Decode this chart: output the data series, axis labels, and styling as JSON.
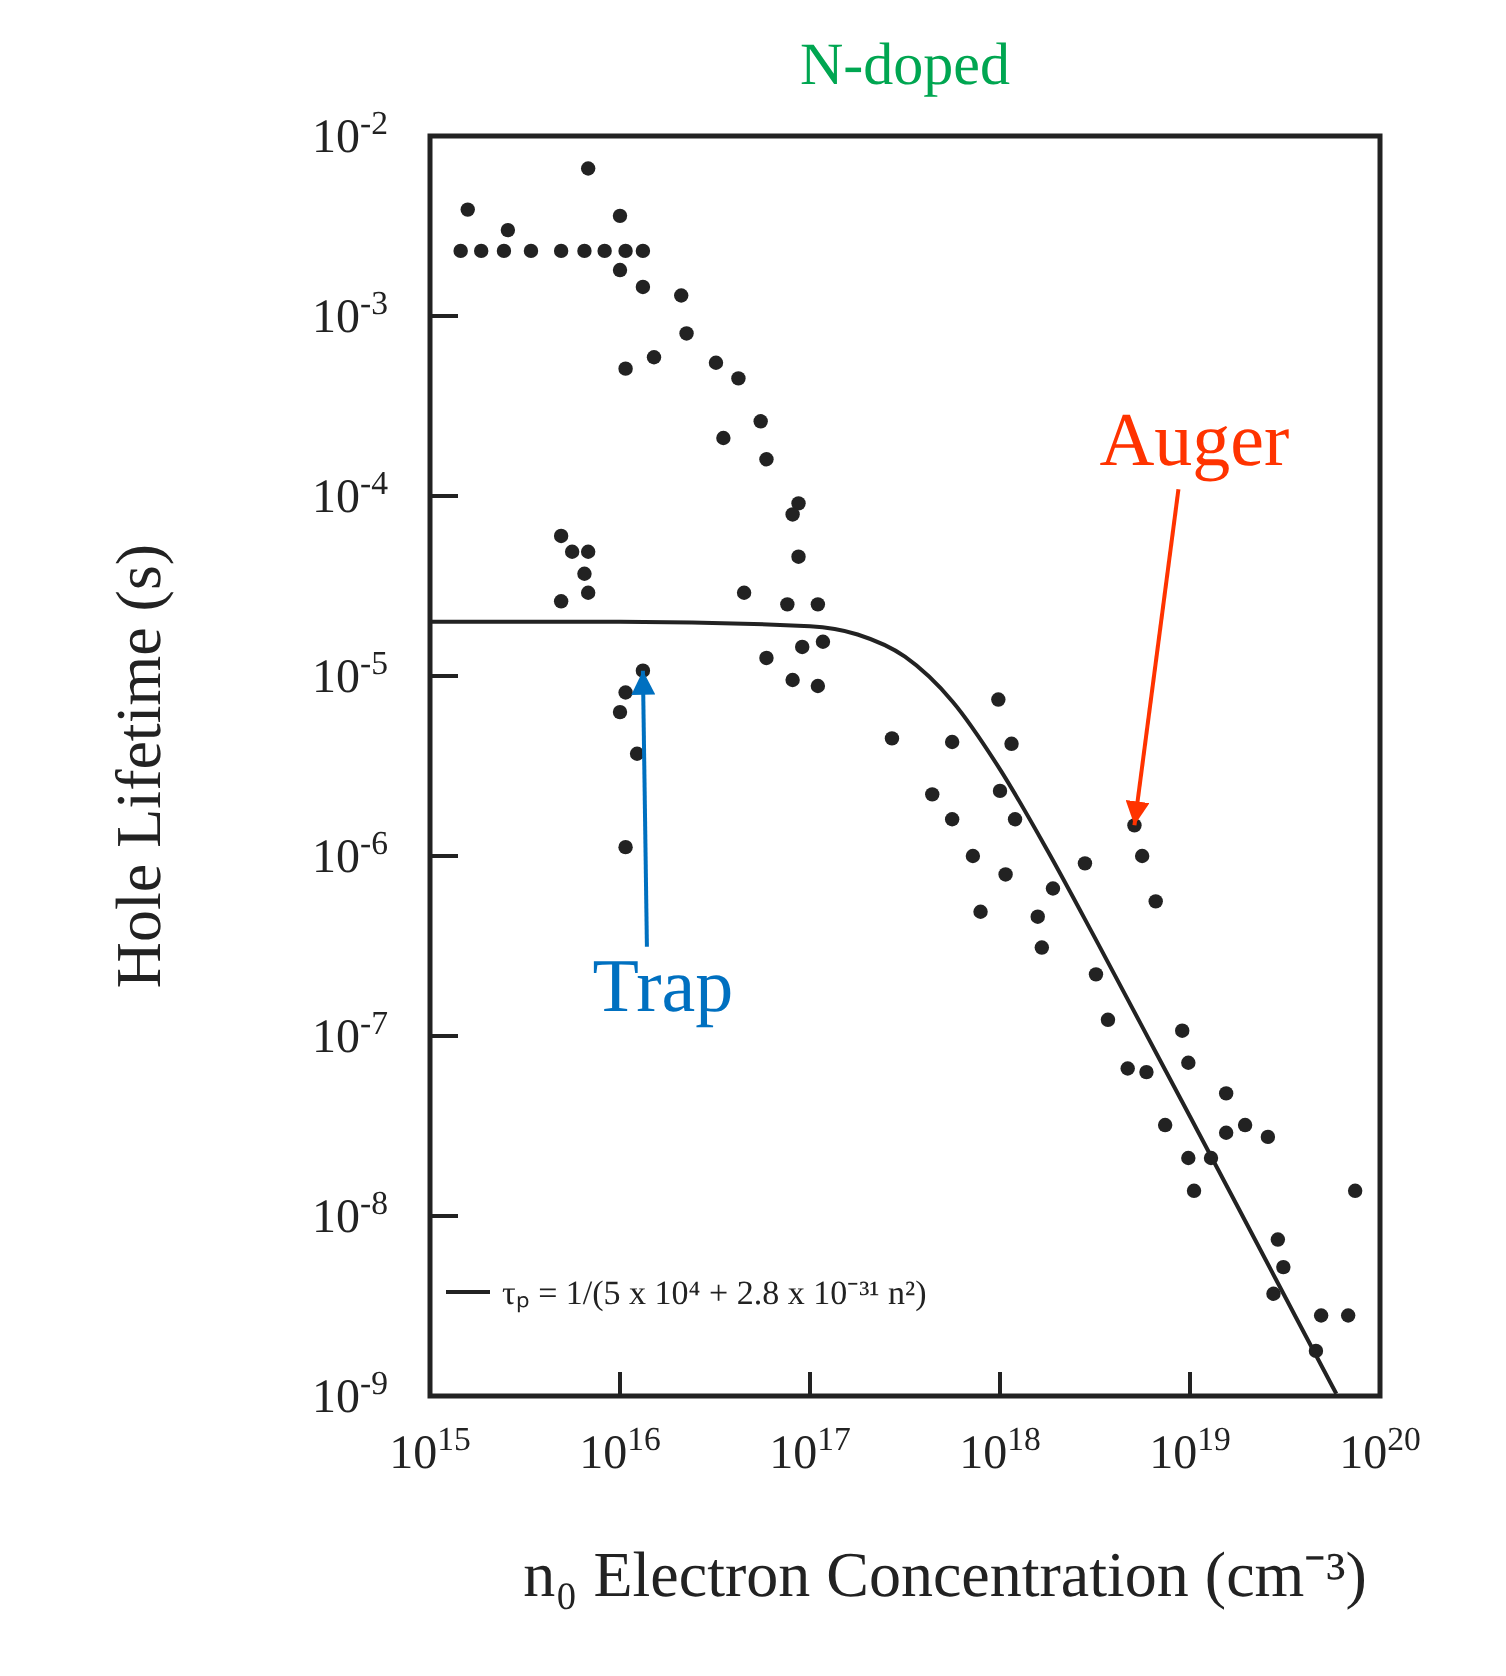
{
  "chart_data": {
    "type": "scatter",
    "title": "N-doped",
    "xlabel": "n₀ Electron Concentration (cm⁻³)",
    "ylabel": "Hole Lifetime (s)",
    "log": "xy",
    "grid": false,
    "legend": "bottom left",
    "xlim": [
      1000000000000000.0,
      1e+20
    ],
    "ylim": [
      1e-09,
      0.01
    ],
    "xticks": [
      {
        "value": 1000000000000000.0,
        "label": "10$^{15}$"
      },
      {
        "value": 1e+16,
        "label": "10$^{16}$"
      },
      {
        "value": 1e+17,
        "label": "10$^{17}$"
      },
      {
        "value": 1e+18,
        "label": "10$^{18}$"
      },
      {
        "value": 1e+19,
        "label": "10$^{19}$"
      },
      {
        "value": 1e+20,
        "label": "10$^{20}$"
      }
    ],
    "yticks": [
      {
        "value": 1e-09,
        "label": "10$^{-9}$"
      },
      {
        "value": 1e-08,
        "label": "10$^{-8}$"
      },
      {
        "value": 1e-07,
        "label": "10$^{-7}$"
      },
      {
        "value": 1e-06,
        "label": "10$^{-6}$"
      },
      {
        "value": 1e-05,
        "label": "10$^{-5}$"
      },
      {
        "value": 0.0001,
        "label": "10$^{-4}$"
      },
      {
        "value": 0.001,
        "label": "10$^{-3}$"
      },
      {
        "value": 0.01,
        "label": "10$^{-2}$"
      }
    ],
    "series": [
      {
        "type": "scatter",
        "marker": "circle",
        "color": "#222222",
        "x": [
          1450000000000000.0,
          1860000000000000.0,
          2450000000000000.0,
          3400000000000000.0,
          4900000000000000.0,
          6500000000000000.0,
          8300000000000000.0,
          1.07e+16,
          1.32e+16,
          1580000000000000.0,
          2570000000000000.0,
          6800000000000000.0,
          1e+16,
          1e+16,
          1.32e+16,
          2.1e+16,
          2.24e+16,
          1.07e+16,
          1.51e+16,
          3.2e+16,
          4.2e+16,
          3.5e+16,
          5.5e+16,
          5.9e+16,
          8.7e+16,
          8.1e+16,
          8.7e+16,
          4.5e+16,
          7.6e+16,
          1.1e+17,
          9.1e+16,
          5.9e+16,
          8.1e+16,
          1.1e+17,
          1.17e+17,
          4900000000000000.0,
          5600000000000000.0,
          6800000000000000.0,
          6500000000000000.0,
          4900000000000000.0,
          6800000000000000.0,
          1.32e+16,
          1.07e+16,
          1e+16,
          1.23e+16,
          1.07e+16,
          2.7e+17,
          5.6e+17,
          9.8e+17,
          1.15e+18,
          4.4e+17,
          5.6e+17,
          7.2e+17,
          1e+18,
          1.2e+18,
          1.07e+18,
          7.9e+17,
          1.58e+18,
          1.9e+18,
          1.66e+18,
          2.8e+18,
          5.1e+18,
          5.6e+18,
          6.6e+18,
          3.2e+18,
          3.7e+18,
          4.7e+18,
          5.9e+18,
          9.1e+18,
          9.8e+18,
          7.4e+18,
          9.8e+18,
          1.05e+19,
          1.29e+19,
          1.55e+19,
          1.55e+19,
          1.95e+19,
          2.57e+19,
          2.9e+19,
          3.1e+19,
          2.75e+19,
          4.9e+19,
          6.8e+19,
          4.6e+19,
          7.4e+19
        ],
        "values": [
          0.0023,
          0.0023,
          0.0023,
          0.0023,
          0.0023,
          0.0023,
          0.0023,
          0.0023,
          0.0023,
          0.0039,
          0.003,
          0.0066,
          0.0036,
          0.0018,
          0.00145,
          0.0013,
          0.0008,
          0.00051,
          0.00059,
          0.00055,
          0.00045,
          0.00021,
          0.00026,
          0.00016,
          9.1e-05,
          7.9e-05,
          4.6e-05,
          2.9e-05,
          2.5e-05,
          2.5e-05,
          1.45e-05,
          1.26e-05,
          9.5e-06,
          8.8e-06,
          1.55e-05,
          6e-05,
          4.9e-05,
          4.9e-05,
          3.7e-05,
          2.6e-05,
          2.9e-05,
          1.07e-05,
          8.1e-06,
          6.3e-06,
          3.7e-06,
          1.12e-06,
          4.5e-06,
          4.3e-06,
          7.4e-06,
          4.2e-06,
          2.2e-06,
          1.6e-06,
          1e-06,
          2.3e-06,
          1.6e-06,
          7.9e-07,
          4.9e-07,
          4.6e-07,
          6.6e-07,
          3.1e-07,
          9.1e-07,
          1.48e-06,
          1e-06,
          5.6e-07,
          2.2e-07,
          1.23e-07,
          6.6e-08,
          6.3e-08,
          1.07e-07,
          7.1e-08,
          3.2e-08,
          2.1e-08,
          1.38e-08,
          2.1e-08,
          4.8e-08,
          2.9e-08,
          3.2e-08,
          2.75e-08,
          7.4e-09,
          5.2e-09,
          3.7e-09,
          2.8e-09,
          2.8e-09,
          1.78e-09,
          1.38e-08
        ]
      },
      {
        "type": "line",
        "marker": "none",
        "name": "τₚ = 1/(5 x 10⁴ + 2.8 x 10⁻³¹ n²)",
        "color": "#222222",
        "x": [
          1000000000000000.0,
          1e+16,
          1e+17,
          1.78e+17,
          3.16e+17,
          5.62e+17,
          1e+18,
          1.78e+18,
          3.16e+18,
          5.62e+18,
          1e+19,
          1.78e+19,
          3.16e+19,
          5.62e+19,
          5.89e+19
        ],
        "values": [
          2e-05,
          2e-05,
          1.89e-05,
          1.7e-05,
          1.28e-05,
          7.22e-06,
          3.03e-06,
          1.07e-06,
          3.51e-07,
          1.12e-07,
          3.57e-08,
          1.13e-08,
          3.57e-09,
          1.13e-09,
          1.03e-09
        ]
      }
    ],
    "annotations": [
      {
        "text": "Auger",
        "x": 5.1e+18,
        "y": 1.48e-06
      },
      {
        "text": "Trap",
        "x": 1.32e+16,
        "y": 1.07e-05
      }
    ]
  }
}
